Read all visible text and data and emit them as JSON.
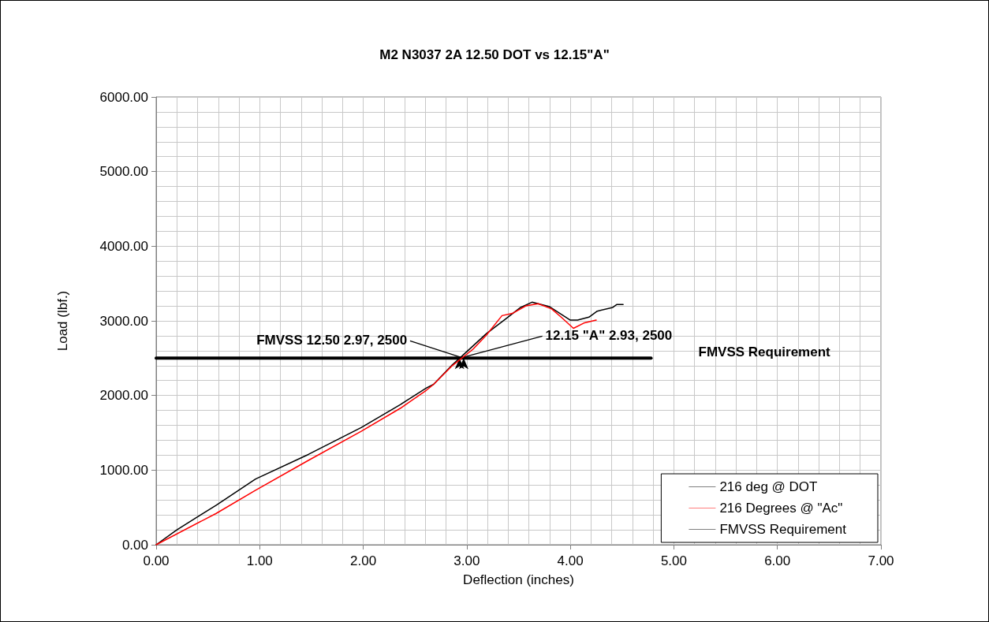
{
  "chart_data": {
    "type": "line",
    "title": "M2 N3037 2A 12.50 DOT vs 12.15\"A\"",
    "xlabel": "Deflection (inches)",
    "ylabel": "Load (lbf.)",
    "series": [
      {
        "name": "216 deg @ DOT",
        "color": "#000000",
        "x": [
          0,
          0.2,
          0.58,
          0.96,
          1.47,
          1.98,
          2.36,
          2.61,
          2.68,
          2.86,
          2.9,
          3.19,
          3.37,
          3.52,
          3.63,
          3.8,
          3.9,
          4.0,
          4.07,
          4.18,
          4.26,
          4.41,
          4.45,
          4.51
        ],
        "values": [
          0,
          200,
          530,
          880,
          1210,
          1570,
          1880,
          2100,
          2150,
          2410,
          2460,
          2830,
          3020,
          3180,
          3250,
          3190,
          3100,
          3010,
          3010,
          3050,
          3130,
          3180,
          3220,
          3220
        ]
      },
      {
        "name": "216 Degrees @ \"Ac\"",
        "color": "#ff0000",
        "x": [
          0,
          0.58,
          0.96,
          1.47,
          1.98,
          2.36,
          2.61,
          2.68,
          2.86,
          3.06,
          3.19,
          3.34,
          3.44,
          3.57,
          3.69,
          3.82,
          3.92,
          4.03,
          4.13,
          4.25
        ],
        "values": [
          0,
          420,
          730,
          1130,
          1520,
          1830,
          2070,
          2150,
          2400,
          2620,
          2810,
          3070,
          3100,
          3200,
          3230,
          3160,
          3040,
          2900,
          2970,
          3010
        ]
      },
      {
        "name": "FMVSS Requirement",
        "color": "#000000",
        "x": [
          0,
          4.78
        ],
        "values": [
          2500,
          2500
        ]
      }
    ],
    "annotations": [
      {
        "text": "FMVSS 12.50 2.97, 2500",
        "x": 2.97,
        "y": 2500
      },
      {
        "text": "12.15 \"A\" 2.93, 2500",
        "x": 2.93,
        "y": 2500
      }
    ],
    "xlim": [
      0,
      7
    ],
    "xticks": [
      {
        "value": 0,
        "label": "0.00"
      },
      {
        "value": 1,
        "label": "1.00"
      },
      {
        "value": 2,
        "label": "2.00"
      },
      {
        "value": 3,
        "label": "3.00"
      },
      {
        "value": 4,
        "label": "4.00"
      },
      {
        "value": 5,
        "label": "5.00"
      },
      {
        "value": 6,
        "label": "6.00"
      },
      {
        "value": 7,
        "label": "7.00"
      }
    ],
    "ylim": [
      0,
      6000
    ],
    "yticks": [
      {
        "value": 0,
        "label": "0.00"
      },
      {
        "value": 1000,
        "label": "1000.00"
      },
      {
        "value": 2000,
        "label": "2000.00"
      },
      {
        "value": 3000,
        "label": "3000.00"
      },
      {
        "value": 4000,
        "label": "4000.00"
      },
      {
        "value": 5000,
        "label": "5000.00"
      },
      {
        "value": 6000,
        "label": "6000.00"
      }
    ],
    "grid": true,
    "legend": "bottom right",
    "marker": "none",
    "line_style": "solid"
  }
}
